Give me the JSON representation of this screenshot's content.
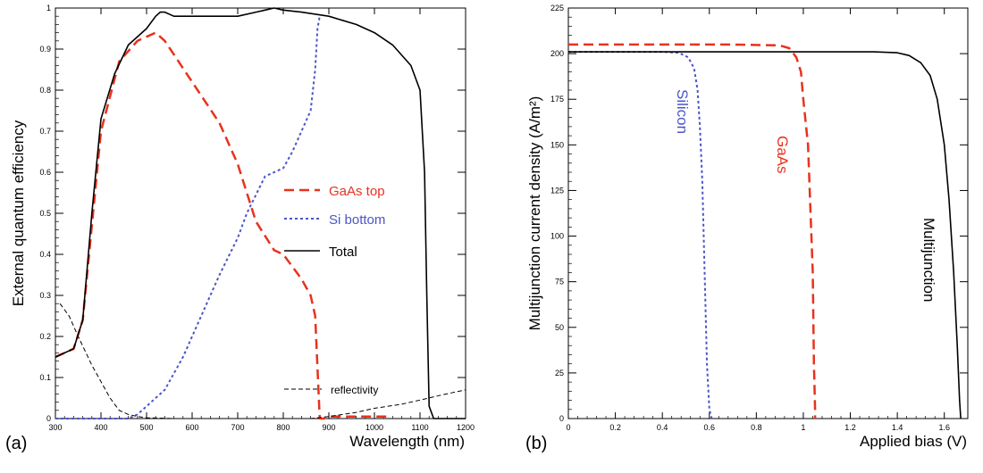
{
  "figure": {
    "panels": [
      {
        "label": "(a)",
        "chart_data": {
          "type": "line",
          "xlabel": "Wavelength (nm)",
          "ylabel": "External quantum efficiency",
          "xlim": [
            300,
            1200
          ],
          "ylim": [
            0,
            1
          ],
          "xticks": [
            "300",
            "400",
            "500",
            "600",
            "700",
            "800",
            "900",
            "1000",
            "1100",
            "1200"
          ],
          "yticks": [
            "0",
            "0.1",
            "0.2",
            "0.3",
            "0.4",
            "0.5",
            "0.6",
            "0.7",
            "0.8",
            "0.9",
            "1"
          ],
          "grid": false,
          "legend_position": "center-right",
          "series": [
            {
              "name": "GaAs top",
              "color": "#e8321e",
              "dash": "dashed",
              "x": [
                300,
                340,
                360,
                400,
                440,
                480,
                500,
                520,
                540,
                600,
                660,
                700,
                740,
                780,
                800,
                840,
                860,
                870,
                880,
                890,
                900,
                960,
                1000,
                1030
              ],
              "y": [
                0.15,
                0.17,
                0.24,
                0.7,
                0.87,
                0.92,
                0.93,
                0.94,
                0.92,
                0.82,
                0.72,
                0.62,
                0.48,
                0.41,
                0.4,
                0.34,
                0.3,
                0.25,
                0.0,
                0.0,
                0.005,
                0.005,
                0.005,
                0.005
              ]
            },
            {
              "name": "Si bottom",
              "color": "#4a55c8",
              "dash": "dotted",
              "x": [
                300,
                360,
                420,
                460,
                480,
                500,
                540,
                580,
                620,
                660,
                700,
                720,
                760,
                780,
                800,
                820,
                840,
                860,
                870,
                875,
                880
              ],
              "y": [
                0.0,
                0.0,
                0.0,
                0.0,
                0.01,
                0.03,
                0.07,
                0.15,
                0.25,
                0.35,
                0.44,
                0.5,
                0.59,
                0.6,
                0.61,
                0.65,
                0.7,
                0.75,
                0.85,
                0.95,
                0.98
              ]
            },
            {
              "name": "Total",
              "color": "#000000",
              "dash": "solid",
              "x": [
                300,
                340,
                360,
                380,
                400,
                430,
                460,
                500,
                520,
                530,
                540,
                560,
                600,
                700,
                740,
                760,
                780,
                800,
                840,
                900,
                960,
                1000,
                1040,
                1080,
                1100,
                1110,
                1115,
                1120,
                1130,
                1200
              ],
              "y": [
                0.15,
                0.17,
                0.24,
                0.5,
                0.73,
                0.84,
                0.91,
                0.95,
                0.98,
                0.99,
                0.99,
                0.98,
                0.98,
                0.98,
                0.99,
                0.995,
                1.0,
                0.995,
                0.99,
                0.98,
                0.96,
                0.94,
                0.91,
                0.86,
                0.8,
                0.6,
                0.3,
                0.03,
                0.0,
                0.0
              ]
            },
            {
              "name": "reflectivity",
              "color": "#000000",
              "dash": "thin-dashed",
              "x": [
                310,
                330,
                350,
                380,
                400,
                420,
                440,
                460,
                480,
                500,
                560,
                640,
                700,
                800,
                860,
                900,
                960,
                1000,
                1060,
                1100,
                1150,
                1200
              ],
              "y": [
                0.28,
                0.25,
                0.2,
                0.13,
                0.09,
                0.05,
                0.02,
                0.01,
                0.005,
                0.002,
                0.0,
                0.0,
                0.0,
                0.0,
                0.0,
                0.005,
                0.015,
                0.025,
                0.035,
                0.045,
                0.058,
                0.07
              ]
            }
          ]
        }
      },
      {
        "label": "(b)",
        "chart_data": {
          "type": "line",
          "xlabel": "Applied bias (V)",
          "ylabel": "Multijunction current density (A/m²)",
          "xlim": [
            0,
            1.7
          ],
          "ylim": [
            0,
            225
          ],
          "xticks": [
            "0",
            "0.2",
            "0.4",
            "0.6",
            "0.8",
            "1",
            "1.2",
            "1.4",
            "1.6"
          ],
          "xtick_values": [
            0,
            0.2,
            0.4,
            0.6,
            0.8,
            1.0,
            1.2,
            1.4,
            1.6
          ],
          "yticks": [
            "0",
            "25",
            "50",
            "75",
            "100",
            "125",
            "150",
            "175",
            "200",
            "225"
          ],
          "grid": false,
          "series": [
            {
              "name": "GaAs",
              "color": "#e8321e",
              "dash": "dashed",
              "x": [
                0,
                0.7,
                0.9,
                0.94,
                0.97,
                0.99,
                1.0,
                1.02,
                1.04,
                1.045,
                1.05,
                1.05
              ],
              "y": [
                205,
                205,
                204.5,
                203,
                198,
                190,
                175,
                150,
                80,
                30,
                5,
                0
              ]
            },
            {
              "name": "Silicon",
              "color": "#4a55c8",
              "dash": "dotted",
              "x": [
                0,
                0.4,
                0.47,
                0.51,
                0.535,
                0.55,
                0.56,
                0.57,
                0.58,
                0.59,
                0.6,
                0.61
              ],
              "y": [
                201,
                201,
                200.5,
                198,
                192,
                180,
                160,
                130,
                80,
                30,
                5,
                0
              ]
            },
            {
              "name": "Multijunction",
              "color": "#000000",
              "dash": "solid",
              "x": [
                0,
                1.3,
                1.4,
                1.45,
                1.5,
                1.54,
                1.57,
                1.6,
                1.62,
                1.64,
                1.655,
                1.665,
                1.67
              ],
              "y": [
                201,
                201,
                200.5,
                199,
                195,
                188,
                175,
                150,
                120,
                80,
                40,
                10,
                0
              ]
            }
          ],
          "annotations": [
            {
              "text": "Silicon",
              "color": "#4a55c8"
            },
            {
              "text": "GaAs",
              "color": "#e8321e"
            },
            {
              "text": "Multijunction",
              "color": "#000000"
            }
          ]
        }
      }
    ]
  }
}
